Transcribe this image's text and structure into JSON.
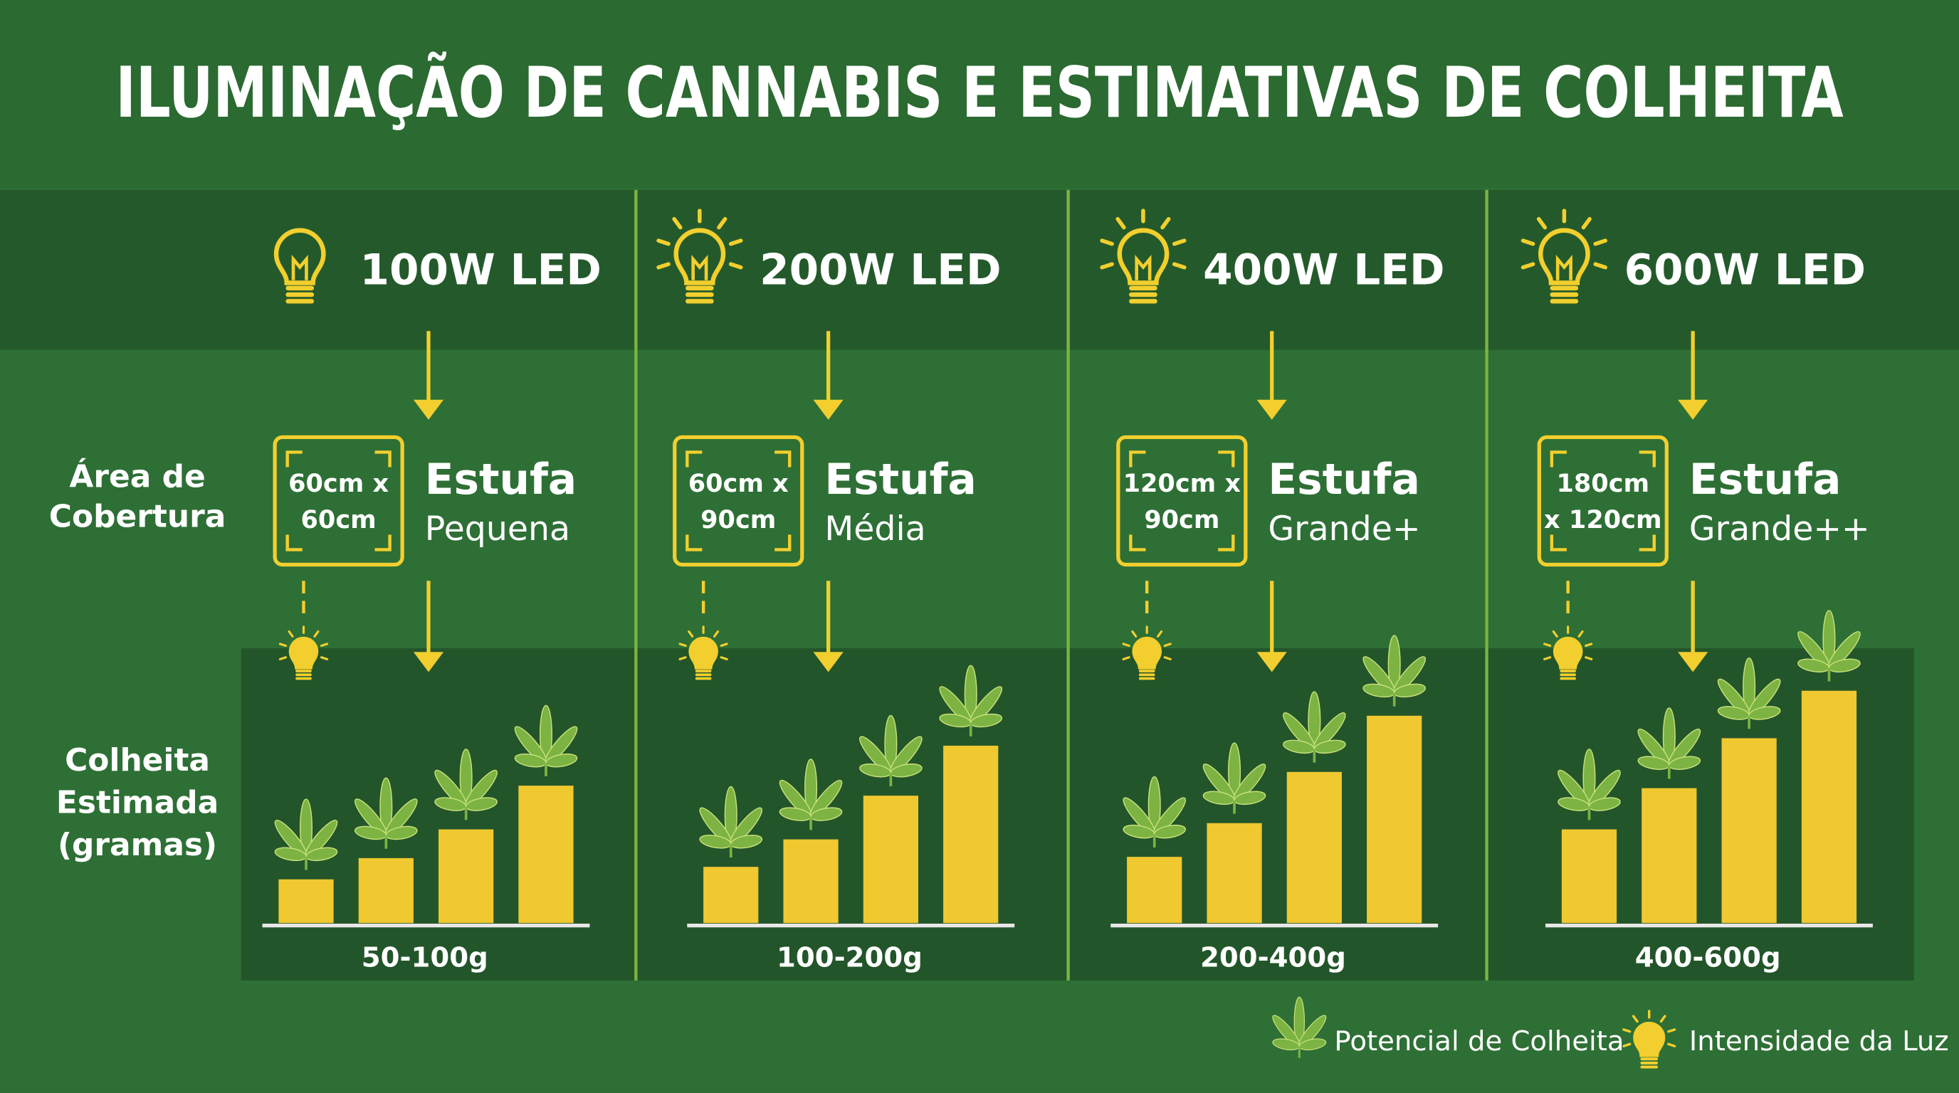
{
  "title": "ILUMINAÇÃO DE CANNABIS E ESTIMATIVAS DE COLHEITA",
  "row_labels": {
    "coverage": [
      "Área de",
      "Cobertura"
    ],
    "harvest": [
      "Colheita",
      "Estimada",
      "(gramas)"
    ]
  },
  "columns": [
    {
      "light": "100W LED",
      "area": [
        "60cm x",
        "60cm"
      ],
      "size": "Estufa",
      "size_detail": "Pequena",
      "harvest": "50-100g"
    },
    {
      "light": "200W LED",
      "area": [
        "60cm x",
        "90cm"
      ],
      "size": "Estufa",
      "size_detail": "Média",
      "harvest": "100-200g"
    },
    {
      "light": "400W LED",
      "area": [
        "120cm x",
        "90cm"
      ],
      "size": "Estufa",
      "size_detail": "Grande+",
      "harvest": "200-400g"
    },
    {
      "light": "600W LED",
      "area": [
        "180cm",
        "x 120cm"
      ],
      "size": "Estufa",
      "size_detail": "Grande++",
      "harvest": "400-600g"
    }
  ],
  "legend": [
    "Potencial de Colheita",
    "Intensidade da Luz"
  ]
}
